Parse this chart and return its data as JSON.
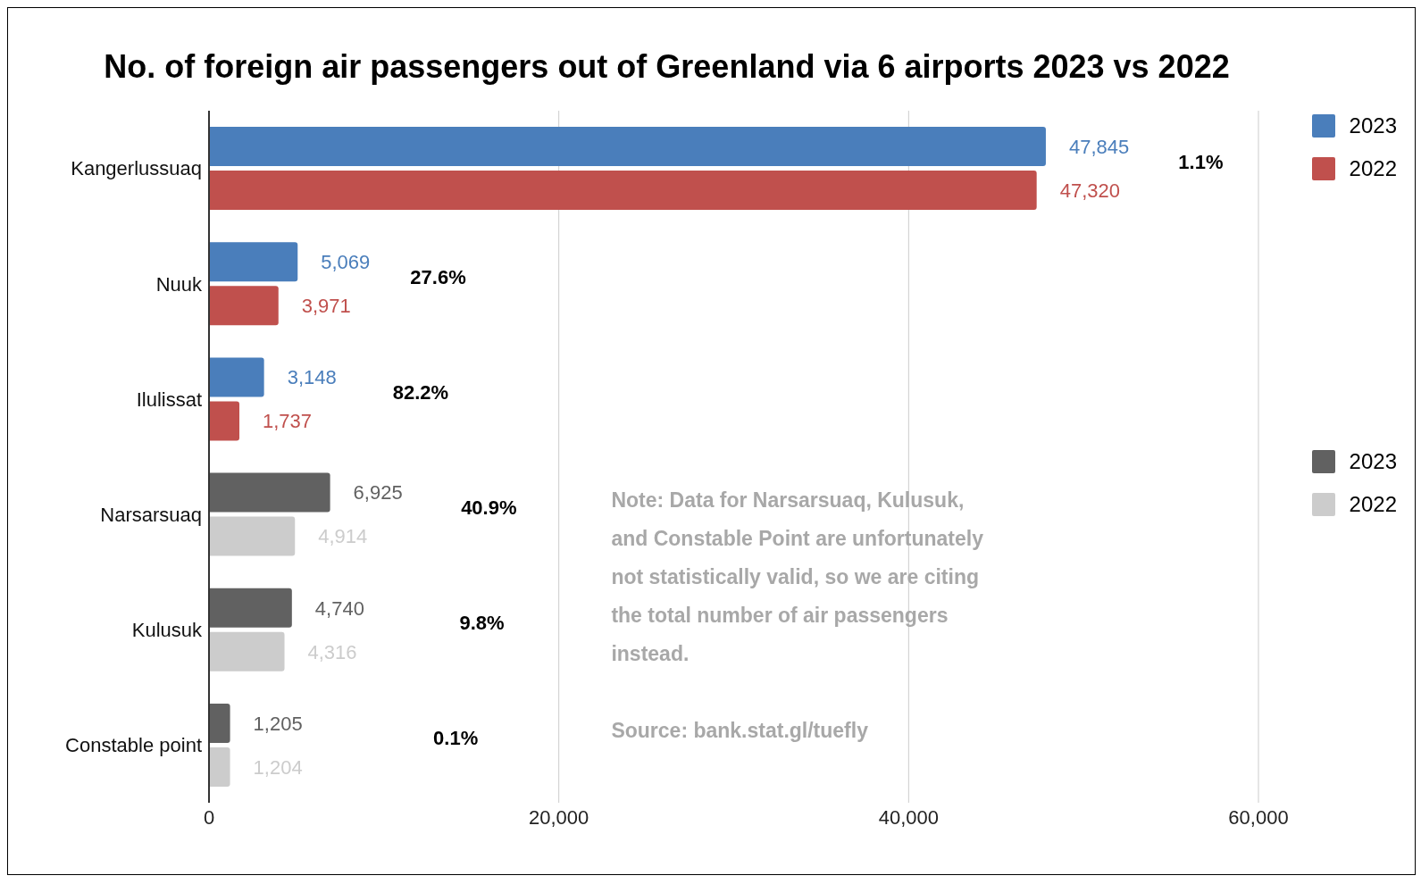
{
  "chart_data": {
    "type": "bar",
    "orientation": "horizontal",
    "title": "No. of foreign air passengers out of Greenland via 6 airports 2023 vs 2022",
    "categories": [
      "Kangerlussuaq",
      "Nuuk",
      "Ilulissat",
      "Narsarsuaq",
      "Kulusuk",
      "Constable point"
    ],
    "series": [
      {
        "name": "2023",
        "color": "#4a7ebb",
        "values": [
          47845,
          5069,
          3148,
          null,
          null,
          null
        ],
        "value_labels": [
          "47,845",
          "5,069",
          "3,148",
          null,
          null,
          null
        ]
      },
      {
        "name": "2022",
        "color": "#c0504d",
        "values": [
          47320,
          3971,
          1737,
          null,
          null,
          null
        ],
        "value_labels": [
          "47,320",
          "3,971",
          "1,737",
          null,
          null,
          null
        ]
      },
      {
        "name": "2023",
        "color": "#616161",
        "values": [
          null,
          null,
          null,
          6925,
          4740,
          1205
        ],
        "value_labels": [
          null,
          null,
          null,
          "6,925",
          "4,740",
          "1,205"
        ]
      },
      {
        "name": "2022",
        "color": "#cccccc",
        "values": [
          null,
          null,
          null,
          4914,
          4316,
          1204
        ],
        "value_labels": [
          null,
          null,
          null,
          "4,914",
          "4,316",
          "1,204"
        ]
      }
    ],
    "xlim": [
      0,
      60000
    ],
    "xticks": [
      0,
      {
        "value": 20000,
        "label": "20,000"
      },
      {
        "value": 40000,
        "label": "40,000"
      },
      {
        "value": 60000,
        "label": "60,000"
      }
    ],
    "grid": "x",
    "legend": "right",
    "annotations": [
      "1.1%",
      "27.6%",
      "82.2%",
      "40.9%",
      "9.8%",
      "0.1%",
      "Note: Data for Narsarsuaq, Kulusuk, and Constable Point are unfortunately not statistically valid, so we are citing the total number of air passengers instead.",
      "Source: bank.stat.gl/tuefly"
    ]
  }
}
